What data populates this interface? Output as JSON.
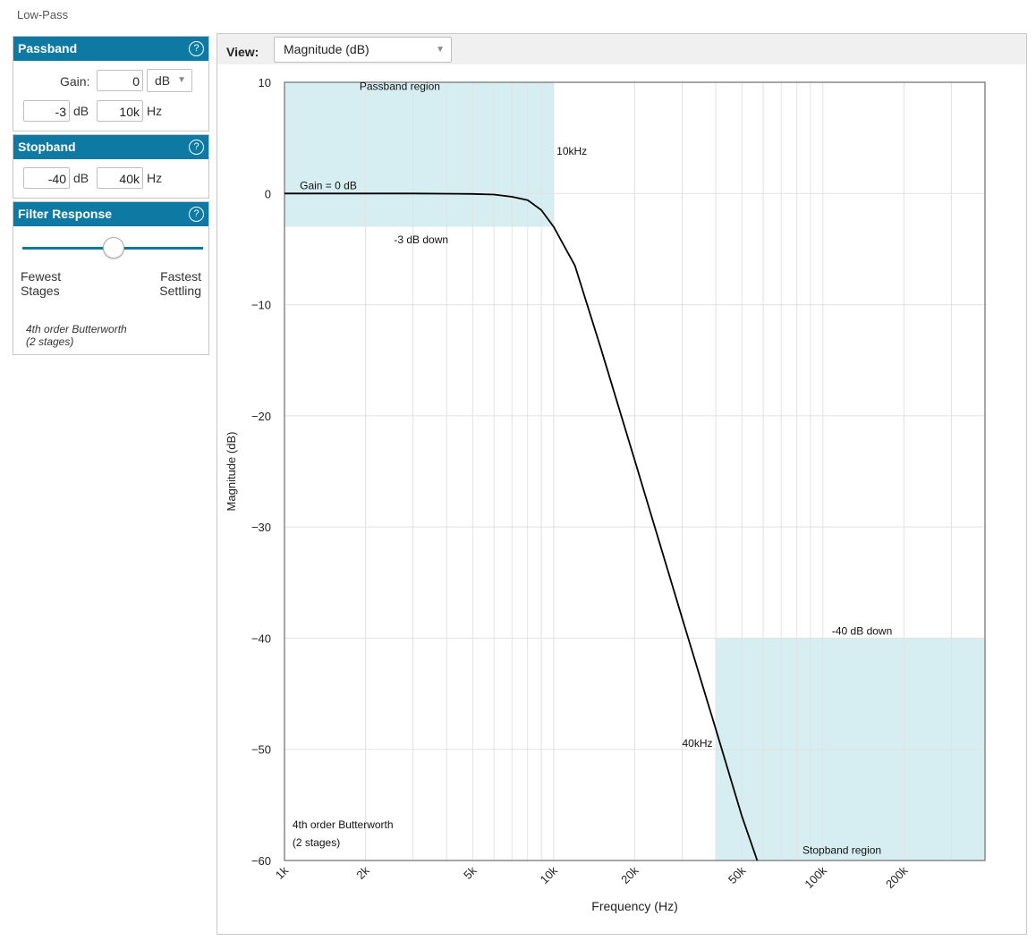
{
  "page_title": "Low-Pass",
  "passband": {
    "title": "Passband",
    "help": "?",
    "gain_label": "Gain:",
    "gain_value": "0",
    "gain_unit": "dB",
    "atten_value": "-3",
    "atten_unit": "dB",
    "freq_value": "10k",
    "freq_unit": "Hz"
  },
  "stopband": {
    "title": "Stopband",
    "help": "?",
    "atten_value": "-40",
    "atten_unit": "dB",
    "freq_value": "40k",
    "freq_unit": "Hz"
  },
  "filter_response": {
    "title": "Filter Response",
    "help": "?",
    "left_label_1": "Fewest",
    "left_label_2": "Stages",
    "right_label_1": "Fastest",
    "right_label_2": "Settling",
    "slider_position": 0.5,
    "note_1": "4th order Butterworth",
    "note_2": "(2 stages)"
  },
  "view": {
    "label": "View:",
    "selected": "Magnitude (dB)"
  },
  "chart_data": {
    "type": "line",
    "xlabel": "Frequency (Hz)",
    "ylabel": "Magnitude (dB)",
    "x_scale": "log",
    "xlim": [
      1000,
      400000
    ],
    "ylim": [
      -60,
      10
    ],
    "x_ticks": [
      {
        "value": 1000,
        "label": "1k"
      },
      {
        "value": 2000,
        "label": "2k"
      },
      {
        "value": 5000,
        "label": "5k"
      },
      {
        "value": 10000,
        "label": "10k"
      },
      {
        "value": 20000,
        "label": "20k"
      },
      {
        "value": 50000,
        "label": "50k"
      },
      {
        "value": 100000,
        "label": "100k"
      },
      {
        "value": 200000,
        "label": "200k"
      }
    ],
    "y_ticks": [
      10,
      0,
      -10,
      -20,
      -30,
      -40,
      -50,
      -60
    ],
    "y_tick_labels": [
      "10",
      "0",
      "−10",
      "−20",
      "−30",
      "−40",
      "−50",
      "−60"
    ],
    "grid": true,
    "series": [
      {
        "color": "#000000",
        "x": [
          1000,
          2000,
          3000,
          5000,
          6000,
          7000,
          8000,
          9000,
          10000,
          12000,
          15000,
          20000,
          30000,
          40000,
          50000,
          57000
        ],
        "y": [
          0,
          0,
          0,
          -0.04,
          -0.1,
          -0.3,
          -0.6,
          -1.5,
          -3.0,
          -6.5,
          -14.0,
          -24.0,
          -38.2,
          -48.2,
          -56.0,
          -60.0
        ]
      }
    ],
    "regions": [
      {
        "label": "Passband region",
        "x0": 1000,
        "x1": 10000,
        "y0": -3,
        "y1": 10,
        "color": "#d6eef2"
      },
      {
        "label": "Stopband region",
        "x0": 40000,
        "x1": 400000,
        "y0": -60,
        "y1": -40,
        "color": "#d6eef2"
      }
    ],
    "annotations": [
      {
        "text": "Passband region",
        "x": 1900,
        "y": 9.3
      },
      {
        "text": "10kHz",
        "x": 10250,
        "y": 3.5
      },
      {
        "text": "Gain = 0 dB",
        "x": 1140,
        "y": 0.4
      },
      {
        "text": "-3 dB down",
        "x": 2550,
        "y": -4.5
      },
      {
        "text": "-40 dB down",
        "x": 108000,
        "y": -39.7
      },
      {
        "text": "40kHz",
        "x": 30000,
        "y": -49.8
      },
      {
        "text": "4th order Butterworth",
        "x": 1070,
        "y": -57.1
      },
      {
        "text": "(2 stages)",
        "x": 1070,
        "y": -58.7
      },
      {
        "text": "Stopband region",
        "x": 84000,
        "y": -59.4
      }
    ]
  }
}
